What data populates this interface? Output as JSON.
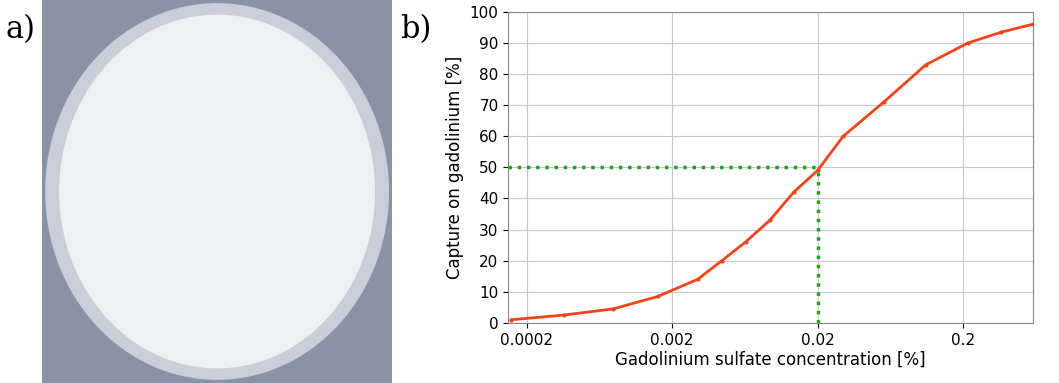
{
  "image_panel": {
    "label": "a)"
  },
  "chart_data": {
    "type": "line",
    "panel_label": "b)",
    "x_label": "Gadolinium sulfate concentration [%]",
    "y_label": "Capture on gadolinium [%]",
    "log": "x",
    "grid": true,
    "series": [
      {
        "name": null,
        "color": "#f0441c",
        "marker": "point",
        "line_style": "solid",
        "x": [
          0.000157,
          0.00036,
          0.00079,
          0.0016,
          0.003,
          0.0044,
          0.0064,
          0.0094,
          0.0137,
          0.02,
          0.03,
          0.057,
          0.111,
          0.216,
          0.367,
          0.6
        ],
        "values": [
          1,
          2.5,
          4.5,
          8.5,
          14,
          20,
          26,
          33,
          42,
          49,
          60,
          71,
          83,
          90,
          93.5,
          96
        ]
      }
    ],
    "reference": {
      "x": 0.02,
      "y": 50,
      "color": "#22a022",
      "line_style": "dotted"
    },
    "xlim": [
      0.00015,
      0.6
    ],
    "xticks": [
      0.0002,
      0.002,
      0.02,
      0.2
    ],
    "ylim": [
      0,
      100
    ],
    "yticks": [
      0,
      10,
      20,
      30,
      40,
      50,
      60,
      70,
      80,
      90,
      100
    ]
  }
}
